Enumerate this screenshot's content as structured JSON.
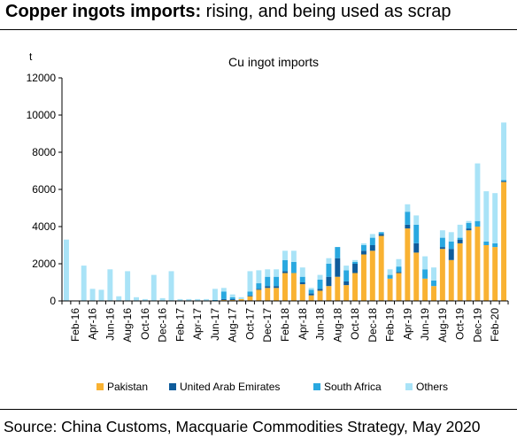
{
  "header": {
    "title_bold": "Copper ingots imports:",
    "title_rest": " rising, and being used as scrap"
  },
  "source": "Source: China Customs, Macquarie Commodities Strategy, May 2020",
  "colors": {
    "pakistan": "#F9B232",
    "uae": "#0F5C9B",
    "south_africa": "#29A8E0",
    "others": "#A9E3F7"
  },
  "chart_data": {
    "type": "bar",
    "stacked": true,
    "title": "Cu ingot imports",
    "ylabel": "t",
    "ylim": [
      0,
      12000
    ],
    "yticks": [
      "0",
      "2000",
      "4000",
      "6000",
      "8000",
      "10000",
      "12000"
    ],
    "grid": false,
    "legend_position": "bottom",
    "categories": [
      "Jan-16",
      "Feb-16",
      "Mar-16",
      "Apr-16",
      "May-16",
      "Jun-16",
      "Jul-16",
      "Aug-16",
      "Sep-16",
      "Oct-16",
      "Nov-16",
      "Dec-16",
      "Jan-17",
      "Feb-17",
      "Mar-17",
      "Apr-17",
      "May-17",
      "Jun-17",
      "Jul-17",
      "Aug-17",
      "Sep-17",
      "Oct-17",
      "Nov-17",
      "Dec-17",
      "Jan-18",
      "Feb-18",
      "Mar-18",
      "Apr-18",
      "May-18",
      "Jun-18",
      "Jul-18",
      "Aug-18",
      "Sep-18",
      "Oct-18",
      "Nov-18",
      "Dec-18",
      "Jan-19",
      "Feb-19",
      "Mar-19",
      "Apr-19",
      "May-19",
      "Jun-19",
      "Jul-19",
      "Aug-19",
      "Sep-19",
      "Oct-19",
      "Nov-19",
      "Dec-19",
      "Jan-20",
      "Feb-20",
      "Mar-20"
    ],
    "x_tick_labels": [
      "Feb-16",
      "Apr-16",
      "Jun-16",
      "Aug-16",
      "Oct-16",
      "Dec-16",
      "Feb-17",
      "Apr-17",
      "Jun-17",
      "Aug-17",
      "Oct-17",
      "Dec-17",
      "Feb-18",
      "Apr-18",
      "Jun-18",
      "Aug-18",
      "Oct-18",
      "Dec-18",
      "Feb-19",
      "Apr-19",
      "Jun-19",
      "Aug-19",
      "Oct-19",
      "Dec-19",
      "Feb-20"
    ],
    "series": [
      {
        "name": "Pakistan",
        "color_key": "pakistan",
        "values": [
          0,
          0,
          0,
          0,
          0,
          0,
          0,
          0,
          0,
          0,
          0,
          0,
          0,
          0,
          0,
          0,
          0,
          0,
          50,
          50,
          100,
          250,
          600,
          700,
          700,
          1500,
          1500,
          900,
          300,
          550,
          800,
          1300,
          850,
          1500,
          2500,
          2700,
          3500,
          1200,
          1500,
          3900,
          2600,
          1200,
          800,
          2800,
          2200,
          3100,
          3800,
          4000,
          3000,
          2900,
          6400
        ]
      },
      {
        "name": "United Arab Emirates",
        "color_key": "uae",
        "values": [
          0,
          0,
          0,
          0,
          0,
          0,
          0,
          0,
          0,
          0,
          0,
          0,
          0,
          0,
          0,
          0,
          0,
          0,
          50,
          50,
          0,
          50,
          50,
          100,
          100,
          100,
          0,
          100,
          100,
          100,
          500,
          1000,
          200,
          500,
          200,
          300,
          100,
          0,
          50,
          200,
          500,
          0,
          0,
          100,
          600,
          200,
          100,
          0,
          0,
          0,
          50
        ]
      },
      {
        "name": "South Africa",
        "color_key": "south_africa",
        "values": [
          0,
          0,
          0,
          0,
          0,
          0,
          0,
          0,
          0,
          0,
          0,
          0,
          0,
          0,
          0,
          0,
          0,
          50,
          400,
          100,
          0,
          200,
          300,
          500,
          500,
          600,
          600,
          300,
          200,
          500,
          700,
          600,
          600,
          100,
          300,
          400,
          100,
          200,
          300,
          700,
          1000,
          500,
          300,
          500,
          400,
          100,
          300,
          300,
          200,
          200,
          50
        ]
      },
      {
        "name": "Others",
        "color_key": "others",
        "values": [
          3300,
          0,
          1900,
          650,
          600,
          1700,
          250,
          1600,
          200,
          100,
          1400,
          150,
          1600,
          100,
          100,
          100,
          100,
          600,
          200,
          150,
          100,
          1100,
          700,
          400,
          400,
          500,
          600,
          500,
          100,
          250,
          300,
          0,
          250,
          100,
          100,
          200,
          0,
          300,
          400,
          400,
          500,
          700,
          700,
          400,
          500,
          700,
          100,
          3100,
          2700,
          2700,
          3100
        ]
      }
    ]
  }
}
